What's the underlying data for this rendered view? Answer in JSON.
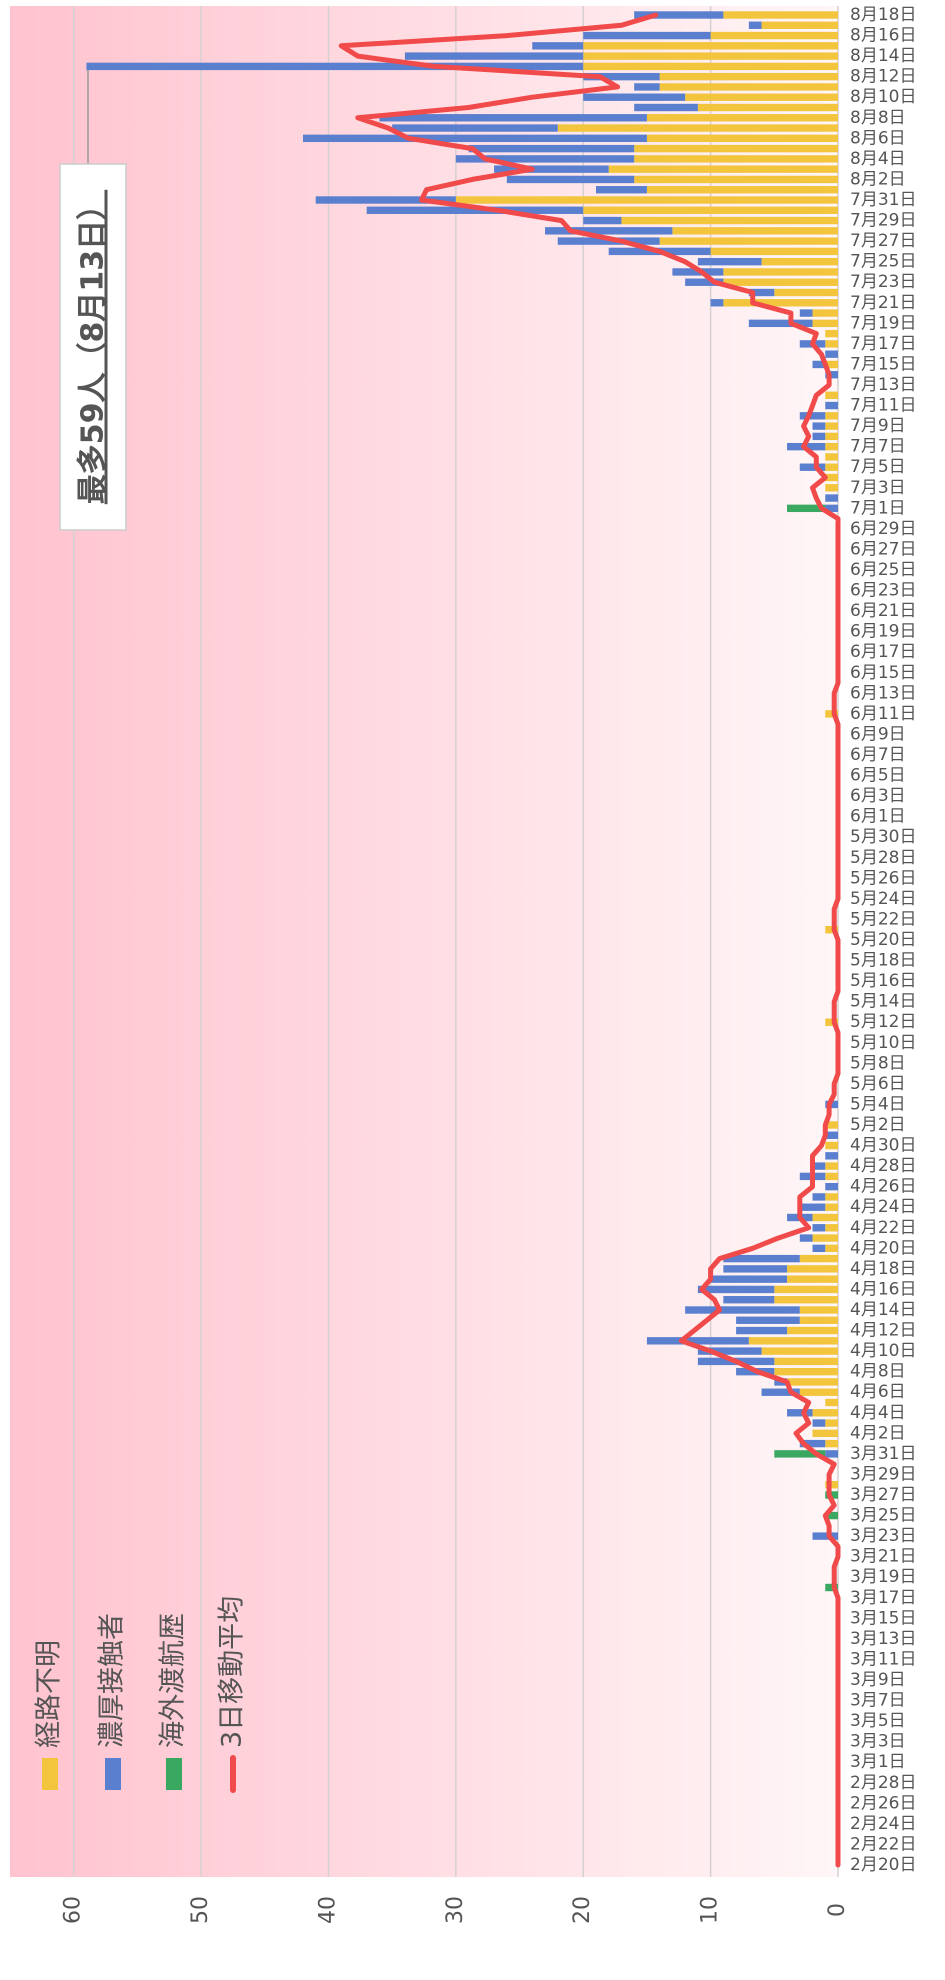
{
  "chart_data": {
    "type": "bar",
    "stacked": true,
    "grid": true,
    "annotation": "最多59人（8月13日）",
    "categories": [
      "2月20日",
      null,
      "2月22日",
      null,
      "2月24日",
      null,
      "2月26日",
      null,
      "2月28日",
      null,
      "3月1日",
      null,
      "3月3日",
      null,
      "3月5日",
      null,
      "3月7日",
      null,
      "3月9日",
      null,
      "3月11日",
      null,
      "3月13日",
      null,
      "3月15日",
      null,
      "3月17日",
      null,
      "3月19日",
      null,
      "3月21日",
      null,
      "3月23日",
      null,
      "3月25日",
      null,
      "3月27日",
      null,
      "3月29日",
      null,
      "3月31日",
      null,
      "4月2日",
      null,
      "4月4日",
      null,
      "4月6日",
      null,
      "4月8日",
      null,
      "4月10日",
      null,
      "4月12日",
      null,
      "4月14日",
      null,
      "4月16日",
      null,
      "4月18日",
      null,
      "4月20日",
      null,
      "4月22日",
      null,
      "4月24日",
      null,
      "4月26日",
      null,
      "4月28日",
      null,
      "4月30日",
      null,
      "5月2日",
      null,
      "5月4日",
      null,
      "5月6日",
      null,
      "5月8日",
      null,
      "5月10日",
      null,
      "5月12日",
      null,
      "5月14日",
      null,
      "5月16日",
      null,
      "5月18日",
      null,
      "5月20日",
      null,
      "5月22日",
      null,
      "5月24日",
      null,
      "5月26日",
      null,
      "5月28日",
      null,
      "5月30日",
      null,
      "6月1日",
      null,
      "6月3日",
      null,
      "6月5日",
      null,
      "6月7日",
      null,
      "6月9日",
      null,
      "6月11日",
      null,
      "6月13日",
      null,
      "6月15日",
      null,
      "6月17日",
      null,
      "6月19日",
      null,
      "6月21日",
      null,
      "6月23日",
      null,
      "6月25日",
      null,
      "6月27日",
      null,
      "6月29日",
      null,
      "7月1日",
      null,
      "7月3日",
      null,
      "7月5日",
      null,
      "7月7日",
      null,
      "7月9日",
      null,
      "7月11日",
      null,
      "7月13日",
      null,
      "7月15日",
      null,
      "7月17日",
      null,
      "7月19日",
      null,
      "7月21日",
      null,
      "7月23日",
      null,
      "7月25日",
      null,
      "7月27日",
      null,
      "7月29日",
      null,
      "7月31日",
      null,
      "8月2日",
      null,
      "8月4日",
      null,
      "8月6日",
      null,
      "8月8日",
      null,
      "8月10日",
      null,
      "8月12日",
      null,
      "8月14日",
      null,
      "8月16日",
      null,
      "8月18日"
    ],
    "series": [
      {
        "name": "経路不明",
        "color": "#f2c53d",
        "values": [
          0,
          0,
          0,
          0,
          0,
          0,
          0,
          0,
          0,
          0,
          0,
          0,
          0,
          0,
          0,
          0,
          0,
          0,
          0,
          0,
          0,
          0,
          0,
          0,
          0,
          0,
          0,
          0,
          0,
          0,
          0,
          0,
          0,
          0,
          0,
          0,
          0,
          1,
          0,
          0,
          0,
          1,
          2,
          1,
          2,
          1,
          3,
          4,
          5,
          5,
          6,
          7,
          4,
          3,
          3,
          5,
          5,
          4,
          4,
          3,
          1,
          2,
          1,
          2,
          1,
          1,
          0,
          1,
          1,
          0,
          1,
          0,
          1,
          0,
          0,
          0,
          0,
          0,
          0,
          0,
          0,
          0,
          1,
          0,
          0,
          0,
          0,
          0,
          0,
          0,
          0,
          1,
          0,
          0,
          0,
          0,
          0,
          0,
          0,
          0,
          0,
          0,
          0,
          0,
          0,
          0,
          0,
          0,
          0,
          0,
          0,
          0,
          1,
          0,
          0,
          0,
          0,
          0,
          0,
          0,
          0,
          0,
          0,
          0,
          0,
          0,
          0,
          0,
          0,
          0,
          0,
          0,
          0,
          0,
          1,
          1,
          1,
          1,
          1,
          1,
          1,
          1,
          0,
          1,
          0,
          0,
          1,
          0,
          1,
          1,
          2,
          2,
          9,
          5,
          9,
          9,
          6,
          10,
          14,
          13,
          17,
          20,
          30,
          15,
          16,
          18,
          16,
          16,
          15,
          22,
          15,
          11,
          12,
          14,
          14,
          20,
          20,
          20,
          10,
          6,
          9
        ]
      },
      {
        "name": "濃厚接触者",
        "color": "#5b7fcf",
        "values": [
          0,
          0,
          0,
          0,
          0,
          0,
          0,
          0,
          0,
          0,
          0,
          0,
          0,
          0,
          0,
          0,
          0,
          0,
          0,
          0,
          0,
          0,
          0,
          0,
          0,
          0,
          0,
          0,
          0,
          0,
          0,
          0,
          2,
          0,
          0,
          0,
          0,
          0,
          0,
          0,
          1,
          2,
          0,
          1,
          2,
          0,
          3,
          1,
          3,
          6,
          5,
          8,
          4,
          5,
          9,
          4,
          6,
          6,
          5,
          6,
          1,
          1,
          1,
          2,
          2,
          1,
          1,
          2,
          1,
          1,
          0,
          1,
          0,
          0,
          1,
          0,
          0,
          0,
          0,
          0,
          0,
          0,
          0,
          0,
          0,
          0,
          0,
          0,
          0,
          0,
          0,
          0,
          0,
          0,
          0,
          0,
          0,
          0,
          0,
          0,
          0,
          0,
          0,
          0,
          0,
          0,
          0,
          0,
          0,
          0,
          0,
          0,
          0,
          0,
          0,
          0,
          0,
          0,
          0,
          0,
          0,
          0,
          0,
          0,
          0,
          0,
          0,
          0,
          0,
          0,
          0,
          0,
          1,
          1,
          0,
          0,
          2,
          0,
          3,
          1,
          1,
          2,
          1,
          0,
          0,
          1,
          1,
          1,
          2,
          0,
          5,
          1,
          1,
          2,
          3,
          4,
          5,
          8,
          8,
          10,
          3,
          17,
          11,
          4,
          10,
          9,
          14,
          13,
          27,
          13,
          21,
          5,
          8,
          2,
          6,
          39,
          14,
          4,
          10,
          1,
          7
        ]
      },
      {
        "name": "海外渡航歴",
        "color": "#3aa860",
        "values": [
          0,
          0,
          0,
          0,
          0,
          0,
          0,
          0,
          0,
          0,
          0,
          0,
          0,
          0,
          0,
          0,
          0,
          0,
          0,
          0,
          0,
          0,
          0,
          0,
          0,
          0,
          0,
          1,
          0,
          0,
          0,
          0,
          0,
          0,
          1,
          0,
          1,
          0,
          0,
          0,
          4,
          0,
          0,
          0,
          0,
          0,
          0,
          0,
          0,
          0,
          0,
          0,
          0,
          0,
          0,
          0,
          0,
          0,
          0,
          0,
          0,
          0,
          0,
          0,
          0,
          0,
          0,
          0,
          0,
          0,
          0,
          0,
          0,
          0,
          0,
          0,
          0,
          0,
          0,
          0,
          0,
          0,
          0,
          0,
          0,
          0,
          0,
          0,
          0,
          0,
          0,
          0,
          0,
          0,
          0,
          0,
          0,
          0,
          0,
          0,
          0,
          0,
          0,
          0,
          0,
          0,
          0,
          0,
          0,
          0,
          0,
          0,
          0,
          0,
          0,
          0,
          0,
          0,
          0,
          0,
          0,
          0,
          0,
          0,
          0,
          0,
          0,
          0,
          0,
          0,
          0,
          0,
          3,
          0,
          0,
          0,
          0,
          0,
          0,
          0,
          0,
          0,
          0,
          0,
          0,
          0,
          0,
          0,
          0,
          0,
          0,
          0,
          0,
          0,
          0,
          0,
          0,
          0,
          0,
          0,
          0,
          0,
          0,
          0,
          0,
          0,
          0,
          0,
          0,
          0,
          0,
          0,
          0,
          0,
          0,
          0,
          0,
          0,
          0,
          0,
          0
        ]
      },
      {
        "name": "3日移動平均",
        "type": "line",
        "color": "#f04a4a",
        "values": [
          0,
          0,
          0,
          0,
          0,
          0,
          0,
          0,
          0,
          0,
          0,
          0,
          0,
          0,
          0,
          0,
          0,
          0,
          0,
          0,
          0,
          0,
          0,
          0,
          0,
          0,
          0,
          0.3,
          0.3,
          0.3,
          0,
          0,
          0.7,
          0.7,
          1.0,
          0.3,
          0.7,
          0.7,
          0.7,
          0.3,
          1.7,
          2.7,
          3.3,
          2.3,
          2.7,
          2.3,
          3.7,
          4.0,
          6.3,
          8.0,
          10.0,
          12.3,
          11.3,
          10.3,
          9.3,
          9.7,
          10.7,
          10.0,
          10.0,
          9.3,
          6.7,
          4.7,
          2.3,
          3.0,
          3.0,
          3.0,
          2.0,
          2.0,
          2.0,
          2.0,
          1.3,
          1.0,
          1.0,
          0.7,
          0.7,
          0.3,
          0.3,
          0,
          0,
          0,
          0,
          0,
          0.3,
          0.3,
          0.3,
          0,
          0,
          0,
          0,
          0,
          0,
          0.3,
          0.3,
          0.3,
          0,
          0,
          0,
          0,
          0,
          0,
          0,
          0,
          0,
          0,
          0,
          0,
          0,
          0,
          0,
          0,
          0,
          0,
          0.3,
          0.3,
          0.3,
          0,
          0,
          0,
          0,
          0,
          0,
          0,
          0,
          0,
          0,
          0,
          0,
          0,
          0,
          0,
          0,
          0,
          1.3,
          1.7,
          2.0,
          1.0,
          1.7,
          1.7,
          2.7,
          2.3,
          2.7,
          2.3,
          2.0,
          1.7,
          0.7,
          0.7,
          1.0,
          1.3,
          2.0,
          1.7,
          3.7,
          3.7,
          6.7,
          6.7,
          9.7,
          10.7,
          12.0,
          14.0,
          17.0,
          21.0,
          21.7,
          26.7,
          32.7,
          32.3,
          28.7,
          24.0,
          27.7,
          28.7,
          33.7,
          35.3,
          37.7,
          29.0,
          24.0,
          17.3,
          18.7,
          31.7,
          37.7,
          39.0,
          26.0,
          17.0,
          14.3
        ]
      }
    ],
    "ylim": [
      0,
      65
    ],
    "yticks": [
      0,
      10,
      20,
      30,
      40,
      50,
      60
    ]
  }
}
